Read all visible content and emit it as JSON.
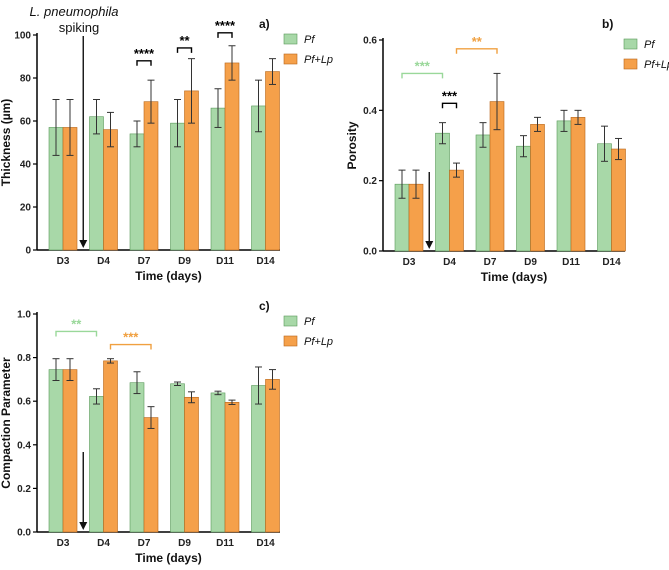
{
  "colors": {
    "pf": "#a8d8a8",
    "pf_edge": "#5a9a5a",
    "pflp": "#f5a04a",
    "pflp_edge": "#b8661a",
    "axis": "#000000",
    "green_sig": "#9ad89a",
    "orange_sig": "#f0a040",
    "black_sig": "#000000"
  },
  "chart_data": [
    {
      "id": "a",
      "type": "bar",
      "panel_label": "a)",
      "ylabel": "Thickness (µm)",
      "xlabel": "Time (days)",
      "ylim": [
        0,
        100
      ],
      "yticks": [
        "0",
        "20",
        "40",
        "60",
        "80",
        "100"
      ],
      "ytick_values": [
        0,
        20,
        40,
        60,
        80,
        100
      ],
      "categories": [
        "D3",
        "D4",
        "D7",
        "D9",
        "D11",
        "D14"
      ],
      "series": [
        {
          "name": "Pf",
          "values": [
            57,
            62,
            54,
            59,
            66,
            67
          ],
          "errors": [
            13,
            8,
            6,
            11,
            9,
            12
          ]
        },
        {
          "name": "Pf+Lp",
          "values": [
            57,
            56,
            69,
            74,
            87,
            83
          ],
          "errors": [
            13,
            8,
            10,
            15,
            8,
            6
          ]
        }
      ],
      "legend": [
        "Pf",
        "Pf+Lp"
      ],
      "annotation_line1": "L. pneumophila",
      "annotation_line2": "spiking",
      "significance": [
        {
          "label": "****",
          "category": "D7",
          "color": "black",
          "level": 88
        },
        {
          "label": "**",
          "category": "D9",
          "color": "black",
          "level": 94
        },
        {
          "label": "****",
          "category": "D11",
          "color": "black",
          "level": 101
        }
      ]
    },
    {
      "id": "b",
      "type": "bar",
      "panel_label": "b)",
      "ylabel": "Porosity",
      "xlabel": "Time (days)",
      "ylim": [
        0,
        0.6
      ],
      "yticks": [
        "0.0",
        "0.2",
        "0.4",
        "0.6"
      ],
      "ytick_values": [
        0,
        0.2,
        0.4,
        0.6
      ],
      "categories": [
        "D3",
        "D4",
        "D7",
        "D9",
        "D11",
        "D14"
      ],
      "series": [
        {
          "name": "Pf",
          "values": [
            0.19,
            0.335,
            0.33,
            0.298,
            0.37,
            0.305
          ],
          "errors": [
            0.04,
            0.03,
            0.035,
            0.03,
            0.03,
            0.05
          ]
        },
        {
          "name": "Pf+Lp",
          "values": [
            0.19,
            0.23,
            0.425,
            0.36,
            0.38,
            0.29
          ],
          "errors": [
            0.04,
            0.02,
            0.08,
            0.02,
            0.02,
            0.03
          ]
        }
      ],
      "legend": [
        "Pf",
        "Pf+Lp"
      ],
      "significance": [
        {
          "label": "***",
          "from": "D3",
          "to": "D4",
          "series_from": "Pf",
          "series_to": "Pf",
          "color": "green",
          "level": 0.505
        },
        {
          "label": "**",
          "from": "D4",
          "to": "D7",
          "series_from": "Pf+Lp",
          "series_to": "Pf+Lp",
          "color": "orange",
          "level": 0.575
        },
        {
          "label": "***",
          "category": "D4",
          "color": "black",
          "level": 0.42
        }
      ]
    },
    {
      "id": "c",
      "type": "bar",
      "panel_label": "c)",
      "ylabel": "Compaction Parameter",
      "xlabel": "Time (days)",
      "ylim": [
        0,
        1.0
      ],
      "yticks": [
        "0.0",
        "0.2",
        "0.4",
        "0.6",
        "0.8",
        "1.0"
      ],
      "ytick_values": [
        0,
        0.2,
        0.4,
        0.6,
        0.8,
        1.0
      ],
      "categories": [
        "D3",
        "D4",
        "D7",
        "D9",
        "D11",
        "D14"
      ],
      "series": [
        {
          "name": "Pf",
          "values": [
            0.745,
            0.622,
            0.685,
            0.68,
            0.638,
            0.672
          ],
          "errors": [
            0.05,
            0.035,
            0.05,
            0.008,
            0.008,
            0.085
          ]
        },
        {
          "name": "Pf+Lp",
          "values": [
            0.745,
            0.785,
            0.525,
            0.618,
            0.595,
            0.7
          ],
          "errors": [
            0.05,
            0.01,
            0.05,
            0.025,
            0.01,
            0.045
          ]
        }
      ],
      "legend": [
        "Pf",
        "Pf+Lp"
      ],
      "significance": [
        {
          "label": "**",
          "from": "D3",
          "to": "D4",
          "series_from": "Pf",
          "series_to": "Pf",
          "color": "green",
          "level": 0.92
        },
        {
          "label": "***",
          "from": "D4",
          "to": "D7",
          "series_from": "Pf+Lp",
          "series_to": "Pf+Lp",
          "color": "orange",
          "level": 0.86
        }
      ]
    }
  ]
}
